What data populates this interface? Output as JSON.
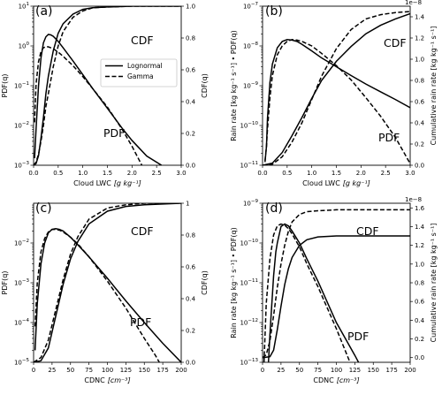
{
  "chart_data": [
    {
      "type": "line",
      "panel_label": "(a)",
      "xlabel": "Cloud LWC",
      "xunit": "[g kg⁻¹]",
      "ylabel_left": "PDF(q)",
      "ylabel_right": "CDF(q)",
      "x_range": [
        0,
        3.0
      ],
      "x_ticks": [
        "0.0",
        "0.5",
        "1.0",
        "1.5",
        "2.0",
        "2.5",
        "3.0"
      ],
      "y_left_scale": "log",
      "y_left_exp_range": [
        -3,
        1
      ],
      "y_left_ticks": [
        {
          "base": "10",
          "exp": "1"
        },
        {
          "base": "10",
          "exp": "0"
        },
        {
          "base": "10",
          "exp": "−1"
        },
        {
          "base": "10",
          "exp": "−2"
        },
        {
          "base": "10",
          "exp": "−3"
        }
      ],
      "y_right_range": [
        0,
        1.0
      ],
      "y_right_ticks": [
        "0.0",
        "0.2",
        "0.4",
        "0.6",
        "0.8",
        "1.0"
      ],
      "annotations": {
        "cdf": "CDF",
        "pdf": "PDF"
      },
      "legend": {
        "position": "center-right",
        "entries": [
          "Lognormal",
          "Gamma"
        ]
      },
      "series": [
        {
          "name": "Lognormal",
          "style": "solid",
          "axis": "left",
          "x": [
            0.02,
            0.05,
            0.1,
            0.15,
            0.2,
            0.25,
            0.3,
            0.35,
            0.4,
            0.5,
            0.6,
            0.8,
            1.0,
            1.2,
            1.5,
            1.8,
            2.0,
            2.3,
            2.6
          ],
          "y": [
            0.0015,
            0.008,
            0.1,
            0.5,
            1.2,
            1.7,
            1.95,
            1.9,
            1.75,
            1.3,
            0.9,
            0.42,
            0.19,
            0.085,
            0.027,
            0.0085,
            0.0042,
            0.0017,
            0.001
          ]
        },
        {
          "name": "Gamma",
          "style": "dashed",
          "axis": "left",
          "x": [
            0.02,
            0.05,
            0.1,
            0.15,
            0.2,
            0.25,
            0.3,
            0.35,
            0.4,
            0.5,
            0.6,
            0.8,
            1.0,
            1.2,
            1.5,
            1.8,
            2.0,
            2.2
          ],
          "y": [
            0.012,
            0.11,
            0.4,
            0.72,
            0.9,
            0.96,
            0.95,
            0.9,
            0.85,
            0.7,
            0.55,
            0.32,
            0.17,
            0.085,
            0.029,
            0.008,
            0.003,
            0.001
          ]
        },
        {
          "name": "Lognormal",
          "style": "solid",
          "axis": "right",
          "x": [
            0,
            0.05,
            0.1,
            0.15,
            0.2,
            0.25,
            0.3,
            0.4,
            0.5,
            0.6,
            0.8,
            1.0,
            1.2,
            1.5,
            2.0,
            3.0
          ],
          "y": [
            0,
            0.01,
            0.06,
            0.17,
            0.3,
            0.45,
            0.56,
            0.72,
            0.83,
            0.89,
            0.95,
            0.98,
            0.99,
            0.995,
            1.0,
            1.0
          ]
        },
        {
          "name": "Gamma",
          "style": "dashed",
          "axis": "right",
          "x": [
            0,
            0.05,
            0.1,
            0.15,
            0.2,
            0.25,
            0.3,
            0.4,
            0.5,
            0.6,
            0.8,
            1.0,
            1.2,
            1.5,
            2.0,
            3.0
          ],
          "y": [
            0,
            0.02,
            0.07,
            0.15,
            0.25,
            0.37,
            0.45,
            0.62,
            0.75,
            0.84,
            0.93,
            0.97,
            0.99,
            0.995,
            1.0,
            1.0
          ]
        }
      ]
    },
    {
      "type": "line",
      "panel_label": "(b)",
      "xlabel": "Cloud LWC",
      "xunit": "[g kg⁻¹]",
      "ylabel_left": "Rain rate [kg kg⁻¹ s⁻¹] • PDF(q)",
      "ylabel_right": "Cumulative rain rate [kg kg⁻¹ s⁻¹]",
      "x_range": [
        0,
        3.0
      ],
      "x_ticks": [
        "0.0",
        "0.5",
        "1.0",
        "1.5",
        "2.0",
        "2.5",
        "3.0"
      ],
      "y_left_scale": "log",
      "y_left_exp_range": [
        -11,
        -7
      ],
      "y_left_ticks": [
        {
          "base": "10",
          "exp": "−7"
        },
        {
          "base": "10",
          "exp": "−8"
        },
        {
          "base": "10",
          "exp": "−9"
        },
        {
          "base": "10",
          "exp": "−10"
        },
        {
          "base": "10",
          "exp": "−11"
        }
      ],
      "y_right_range": [
        0,
        1.5
      ],
      "y_right_ticks": [
        "0.0",
        "0.2",
        "0.4",
        "0.6",
        "0.8",
        "1.0",
        "1.2",
        "1.4"
      ],
      "y_right_offset_text": "1e−8",
      "annotations": {
        "cdf": "CDF",
        "pdf": "PDF"
      },
      "series": [
        {
          "name": "Lognormal",
          "style": "solid",
          "axis": "left",
          "x": [
            0.05,
            0.08,
            0.1,
            0.15,
            0.2,
            0.3,
            0.4,
            0.5,
            0.6,
            0.7,
            0.8,
            1.0,
            1.2,
            1.5,
            1.8,
            2.1,
            2.4,
            2.7,
            3.0
          ],
          "y": [
            1.2e-11,
            3e-11,
            1.5e-10,
            1.2e-09,
            3.5e-09,
            9e-09,
            1.3e-08,
            1.45e-08,
            1.4e-08,
            1.3e-08,
            1.1e-08,
            7.5e-09,
            5e-09,
            3e-09,
            1.8e-09,
            1.1e-09,
            7e-10,
            4.5e-10,
            2.8e-10
          ]
        },
        {
          "name": "Gamma",
          "style": "dashed",
          "axis": "left",
          "x": [
            0.05,
            0.08,
            0.1,
            0.15,
            0.2,
            0.3,
            0.4,
            0.5,
            0.6,
            0.7,
            0.8,
            1.0,
            1.2,
            1.5,
            1.8,
            2.1,
            2.4,
            2.7,
            3.0
          ],
          "y": [
            1.3e-11,
            3e-11,
            8e-11,
            5e-10,
            1.8e-09,
            6e-09,
            1e-08,
            1.3e-08,
            1.45e-08,
            1.4e-08,
            1.3e-08,
            1e-08,
            6.5e-09,
            3.2e-09,
            1.4e-09,
            5e-10,
            1.7e-10,
            5e-11,
            1.1e-11
          ]
        },
        {
          "name": "Lognormal",
          "style": "solid",
          "axis": "right",
          "x": [
            0,
            0.2,
            0.4,
            0.6,
            0.8,
            1.0,
            1.2,
            1.5,
            1.8,
            2.1,
            2.4,
            2.7,
            3.0
          ],
          "y": [
            0,
            0.02,
            0.12,
            0.28,
            0.45,
            0.63,
            0.8,
            0.98,
            1.12,
            1.24,
            1.32,
            1.38,
            1.43
          ]
        },
        {
          "name": "Gamma",
          "style": "dashed",
          "axis": "right",
          "x": [
            0,
            0.2,
            0.4,
            0.6,
            0.8,
            1.0,
            1.2,
            1.5,
            1.8,
            2.1,
            2.4,
            2.7,
            3.0
          ],
          "y": [
            0,
            0.01,
            0.08,
            0.22,
            0.4,
            0.62,
            0.84,
            1.1,
            1.28,
            1.38,
            1.42,
            1.44,
            1.45
          ]
        }
      ]
    },
    {
      "type": "line",
      "panel_label": "(c)",
      "xlabel": "CDNC",
      "xunit": "[cm⁻³]",
      "ylabel_left": "PDF(q)",
      "ylabel_right": "CDF(q)",
      "x_range": [
        0,
        200
      ],
      "x_ticks": [
        "0",
        "25",
        "50",
        "75",
        "100",
        "125",
        "150",
        "175",
        "200"
      ],
      "y_left_scale": "log",
      "y_left_exp_range": [
        -5,
        -1
      ],
      "y_left_ticks": [
        {
          "base": "10",
          "exp": "−2"
        },
        {
          "base": "10",
          "exp": "−3"
        },
        {
          "base": "10",
          "exp": "−4"
        },
        {
          "base": "10",
          "exp": "−5"
        }
      ],
      "y_right_range": [
        0,
        1.0
      ],
      "y_right_ticks": [
        "0.0",
        "0.2",
        "0.4",
        "0.6",
        "0.8",
        "1"
      ],
      "annotations": {
        "cdf": "CDF",
        "pdf": "PDF"
      },
      "series": [
        {
          "name": "Lognormal",
          "style": "solid",
          "axis": "left",
          "x": [
            2,
            5,
            10,
            15,
            20,
            25,
            30,
            35,
            40,
            50,
            60,
            75,
            100,
            125,
            150,
            175,
            200
          ],
          "y": [
            2e-05,
            0.0003,
            0.003,
            0.01,
            0.018,
            0.022,
            0.023,
            0.022,
            0.02,
            0.014,
            0.009,
            0.0045,
            0.0013,
            0.00035,
            0.0001,
            3e-05,
            1e-05
          ]
        },
        {
          "name": "Gamma",
          "style": "dashed",
          "axis": "left",
          "x": [
            2,
            5,
            10,
            15,
            20,
            25,
            30,
            35,
            40,
            50,
            60,
            75,
            100,
            125,
            150,
            165,
            175
          ],
          "y": [
            8e-05,
            0.001,
            0.006,
            0.013,
            0.019,
            0.022,
            0.022,
            0.021,
            0.019,
            0.014,
            0.0095,
            0.0045,
            0.0011,
            0.00023,
            4e-05,
            1.5e-05,
            7e-06
          ]
        },
        {
          "name": "Lognormal",
          "style": "solid",
          "axis": "right",
          "x": [
            0,
            10,
            20,
            30,
            40,
            50,
            60,
            75,
            100,
            125,
            150,
            200
          ],
          "y": [
            0,
            0.01,
            0.09,
            0.29,
            0.49,
            0.65,
            0.76,
            0.87,
            0.95,
            0.98,
            0.99,
            1.0
          ]
        },
        {
          "name": "Gamma",
          "style": "dashed",
          "axis": "right",
          "x": [
            0,
            10,
            20,
            30,
            40,
            50,
            60,
            75,
            100,
            125,
            150,
            200
          ],
          "y": [
            0,
            0.03,
            0.14,
            0.33,
            0.52,
            0.68,
            0.79,
            0.9,
            0.97,
            0.99,
            1.0,
            1.0
          ]
        }
      ]
    },
    {
      "type": "line",
      "panel_label": "(d)",
      "xlabel": "CDNC",
      "xunit": "[cm⁻³]",
      "ylabel_left": "Rain rate [kg kg⁻¹ s⁻¹] • PDF(q)",
      "ylabel_right": "Cumulative rain rate [kg kg⁻¹ s⁻¹]",
      "x_range": [
        0,
        200
      ],
      "x_ticks": [
        "0",
        "25",
        "50",
        "75",
        "100",
        "125",
        "150",
        "175",
        "200"
      ],
      "y_left_scale": "log",
      "y_left_exp_range": [
        -13,
        -9
      ],
      "y_left_ticks": [
        {
          "base": "10",
          "exp": "−9"
        },
        {
          "base": "10",
          "exp": "−10"
        },
        {
          "base": "10",
          "exp": "−11"
        },
        {
          "base": "10",
          "exp": "−12"
        },
        {
          "base": "10",
          "exp": "−13"
        }
      ],
      "y_right_range": [
        -0.05,
        1.65
      ],
      "y_right_ticks": [
        "0.0",
        "0.2",
        "0.4",
        "0.6",
        "0.8",
        "1.0",
        "1.2",
        "1.4",
        "1.6"
      ],
      "y_right_offset_text": "1e−8",
      "annotations": {
        "cdf": "CDF",
        "pdf": "PDF"
      },
      "series": [
        {
          "name": "Lognormal",
          "style": "solid",
          "axis": "left",
          "x": [
            8,
            10,
            12,
            15,
            18,
            20,
            25,
            30,
            35,
            40,
            50,
            60,
            75,
            100,
            125,
            150,
            155
          ],
          "y": [
            1e-13,
            5e-13,
            2e-12,
            1.5e-11,
            6e-11,
            1e-10,
            2.6e-10,
            3e-10,
            2.7e-10,
            2e-10,
            1e-10,
            4e-11,
            1.1e-11,
            1e-12,
            1.5e-13,
            2e-14,
            1e-14
          ]
        },
        {
          "name": "Gamma",
          "style": "dashed",
          "axis": "left",
          "x": [
            2,
            5,
            10,
            15,
            20,
            25,
            30,
            35,
            40,
            50,
            60,
            75,
            100,
            125,
            140,
            145
          ],
          "y": [
            1e-13,
            3e-12,
            4e-11,
            1.6e-10,
            2.7e-10,
            3e-10,
            2.8e-10,
            2.3e-10,
            1.7e-10,
            8e-11,
            3e-11,
            8e-12,
            7e-13,
            5e-14,
            1e-14,
            6e-15
          ]
        },
        {
          "name": "Lognormal",
          "style": "solid",
          "axis": "right",
          "x": [
            0,
            10,
            15,
            20,
            25,
            30,
            35,
            40,
            50,
            60,
            75,
            100,
            150,
            200
          ],
          "y": [
            0,
            0.01,
            0.08,
            0.3,
            0.55,
            0.78,
            0.95,
            1.07,
            1.2,
            1.26,
            1.29,
            1.3,
            1.3,
            1.3
          ]
        },
        {
          "name": "Gamma",
          "style": "dashed",
          "axis": "right",
          "x": [
            0,
            5,
            10,
            15,
            20,
            25,
            30,
            35,
            40,
            50,
            60,
            75,
            100,
            150,
            200
          ],
          "y": [
            0,
            0.03,
            0.18,
            0.45,
            0.75,
            1.0,
            1.2,
            1.35,
            1.45,
            1.53,
            1.56,
            1.57,
            1.58,
            1.58,
            1.58
          ]
        }
      ]
    }
  ]
}
